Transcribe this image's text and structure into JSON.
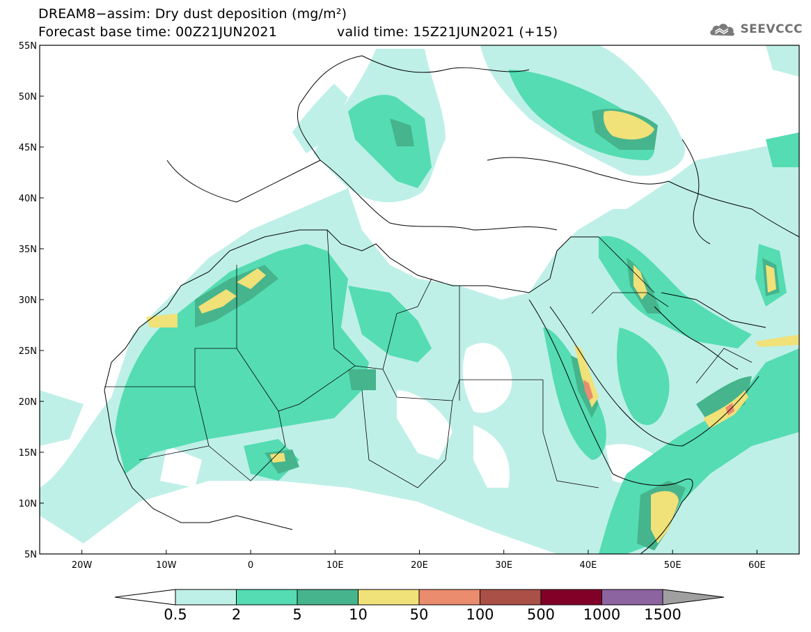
{
  "title": {
    "line1": "DREAM8−assim: Dry dust deposition (mg/m²)",
    "line2": "Forecast base time: 00Z21JUN2021",
    "valid": "valid time: 15Z21JUN2021 (+15)"
  },
  "logo": {
    "text": "SEEVCCC",
    "icon": "cloud-icon"
  },
  "map": {
    "region": {
      "lon_range": [
        -25,
        65
      ],
      "lat_range": [
        5,
        55
      ]
    },
    "lat_labels": [
      "55N",
      "50N",
      "45N",
      "40N",
      "35N",
      "30N",
      "25N",
      "20N",
      "15N",
      "10N",
      "5N"
    ],
    "lon_labels": [
      "20W",
      "10W",
      "0",
      "10E",
      "20E",
      "30E",
      "40E",
      "50E",
      "60E"
    ]
  },
  "colorbar": {
    "levels": [
      "0.5",
      "2",
      "5",
      "10",
      "50",
      "100",
      "500",
      "1000",
      "1500"
    ],
    "colors": [
      "#bff0e8",
      "#55dcb2",
      "#46b48c",
      "#f0e178",
      "#eb8c6e",
      "#aa5046",
      "#820028",
      "#8c64a0",
      "#a0a0a0"
    ]
  }
}
